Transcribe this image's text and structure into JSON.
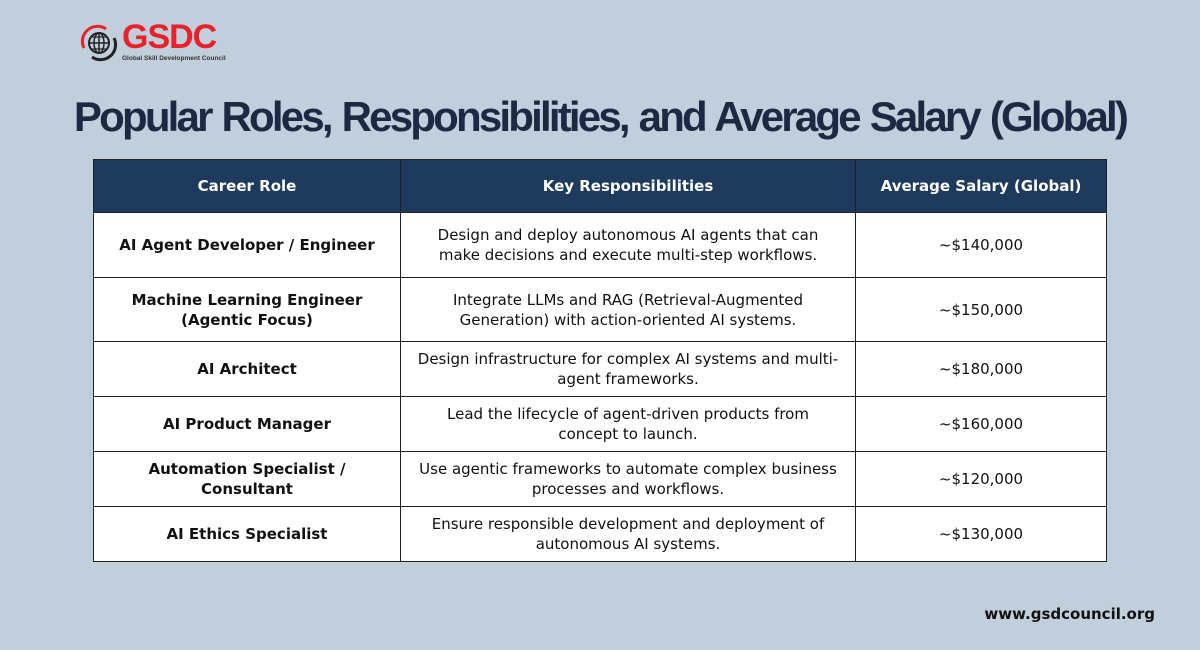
{
  "logo": {
    "text": "GSDC",
    "subtitle": "Global Skill Development Council"
  },
  "title": "Popular Roles, Responsibilities, and Average Salary (Global)",
  "table": {
    "headers": [
      "Career Role",
      "Key Responsibilities",
      "Average Salary (Global)"
    ],
    "rows": [
      {
        "role": "AI Agent Developer / Engineer",
        "responsibilities": "Design and deploy autonomous AI agents that can make decisions and execute multi-step workflows.",
        "salary": "~$140,000"
      },
      {
        "role": "Machine Learning Engineer (Agentic Focus)",
        "responsibilities": "Integrate LLMs and RAG (Retrieval-Augmented Generation) with action-oriented AI systems.",
        "salary": "~$150,000"
      },
      {
        "role": "AI Architect",
        "responsibilities": "Design infrastructure for complex AI systems and multi-agent frameworks.",
        "salary": "~$180,000"
      },
      {
        "role": "AI Product Manager",
        "responsibilities": "Lead the lifecycle of agent-driven products from concept to launch.",
        "salary": "~$160,000"
      },
      {
        "role": "Automation Specialist / Consultant",
        "responsibilities": "Use agentic frameworks to automate complex business processes and workflows.",
        "salary": "~$120,000"
      },
      {
        "role": "AI Ethics Specialist",
        "responsibilities": "Ensure responsible development and deployment of autonomous AI systems.",
        "salary": "~$130,000"
      }
    ]
  },
  "footer": {
    "url": "www.gsdcouncil.org"
  },
  "colors": {
    "background": "#c0cfdb",
    "header": "#1e3b5e",
    "title": "#1c2942",
    "brand": "#e8212b"
  }
}
